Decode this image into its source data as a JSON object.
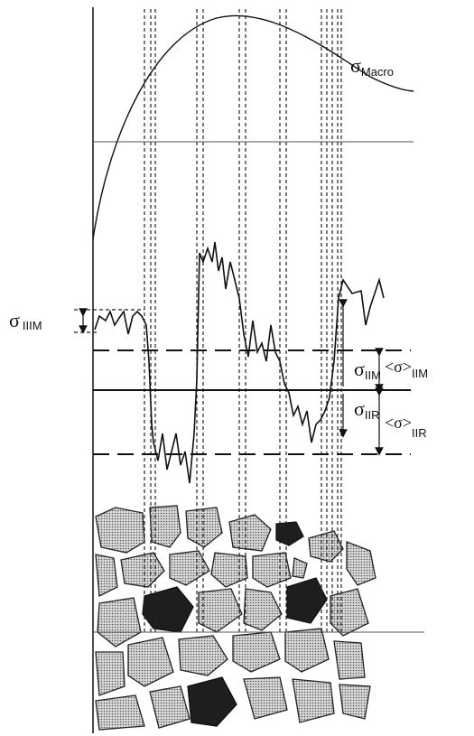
{
  "labels": {
    "macro": {
      "symbol": "σ",
      "subscript": "Macro"
    },
    "iiim": {
      "symbol": "σ",
      "subscript": "IIIM"
    },
    "iim": {
      "symbol": "σ",
      "subscript": "IIM"
    },
    "mean_iim": {
      "symbol": "<σ>",
      "subscript": "IIM"
    },
    "iir": {
      "symbol": "σ",
      "subscript": "IIR"
    },
    "mean_iir": {
      "symbol": "<σ>",
      "subscript": "IIR"
    }
  }
}
